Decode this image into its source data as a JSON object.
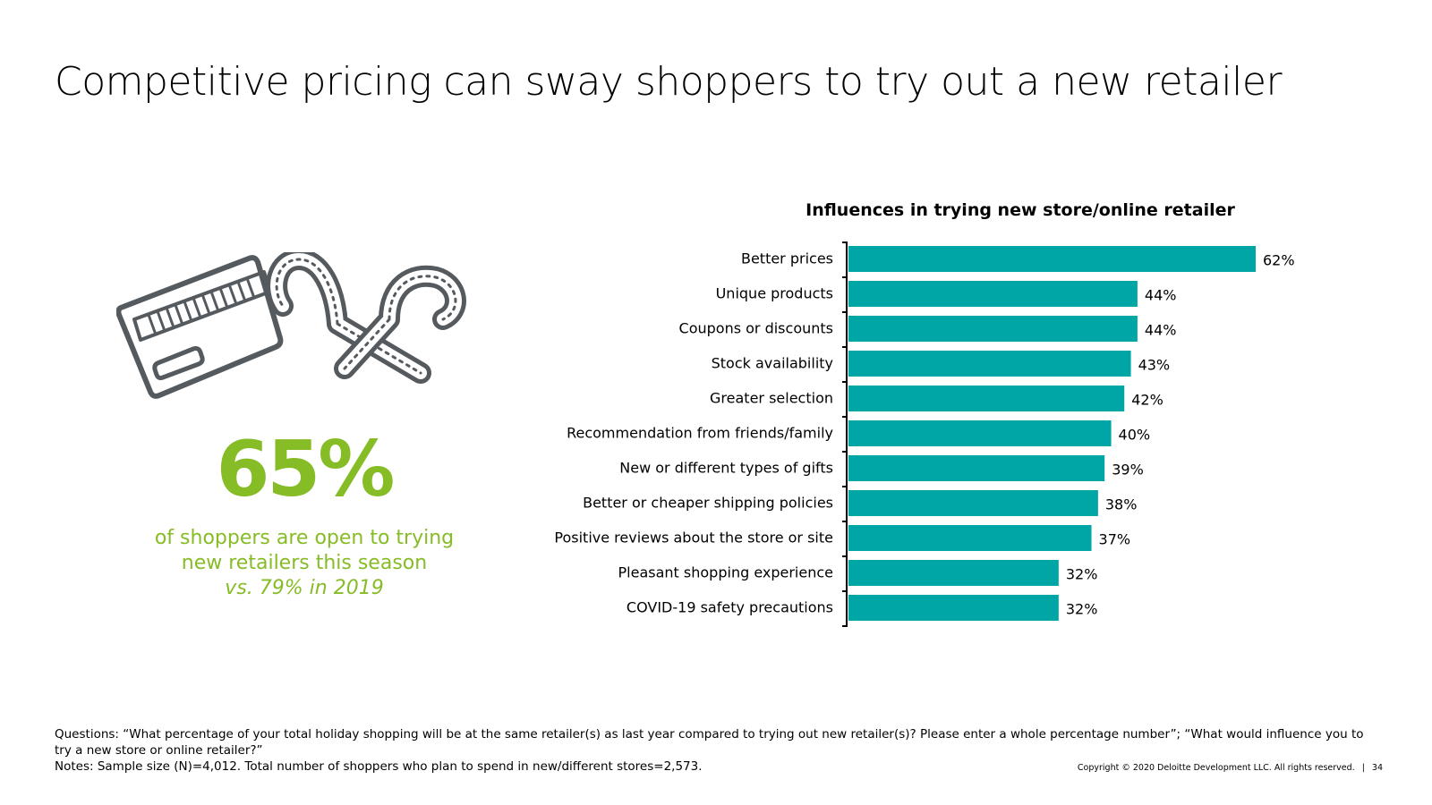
{
  "title": "Competitive pricing can sway shoppers to try out a new retailer",
  "stat": {
    "value": "65%",
    "caption_line1": "of shoppers are open to trying",
    "caption_line2": "new retailers this season",
    "comparison": "vs. 79% in 2019"
  },
  "icons": [
    "credit-card-icon",
    "candy-canes-icon"
  ],
  "colors": {
    "bar": "#00a5a5",
    "accent": "#86bc25",
    "axis": "#000000"
  },
  "chart_data": {
    "type": "bar",
    "orientation": "horizontal",
    "title": "Influences in trying new store/online retailer",
    "categories": [
      "Better prices",
      "Unique products",
      "Coupons or discounts",
      "Stock availability",
      "Greater selection",
      "Recommendation from friends/family",
      "New or different types of gifts",
      "Better or cheaper shipping policies",
      "Positive reviews about the store or site",
      "Pleasant shopping experience",
      "COVID-19 safety precautions"
    ],
    "values": [
      62,
      44,
      44,
      43,
      42,
      40,
      39,
      38,
      37,
      32,
      32
    ],
    "labels": [
      "62%",
      "44%",
      "44%",
      "43%",
      "42%",
      "40%",
      "39%",
      "38%",
      "37%",
      "32%",
      "32%"
    ],
    "unit": "%",
    "xlim": [
      0,
      62
    ],
    "xlabel": "",
    "ylabel": "",
    "grid": false,
    "legend": "none"
  },
  "footnote": {
    "questions": "Questions: “What percentage of your total holiday shopping will be at the same retailer(s) as last year compared to trying out new retailer(s)? Please enter a whole percentage number”; “What would influence you to try a new store or online retailer?”",
    "notes": "Notes: Sample size (N)=4,012. Total number of shoppers who plan to spend in new/different stores=2,573."
  },
  "copyright": {
    "text": "Copyright © 2020 Deloitte Development LLC. All rights reserved.",
    "separator": "|",
    "page_number": "34"
  }
}
